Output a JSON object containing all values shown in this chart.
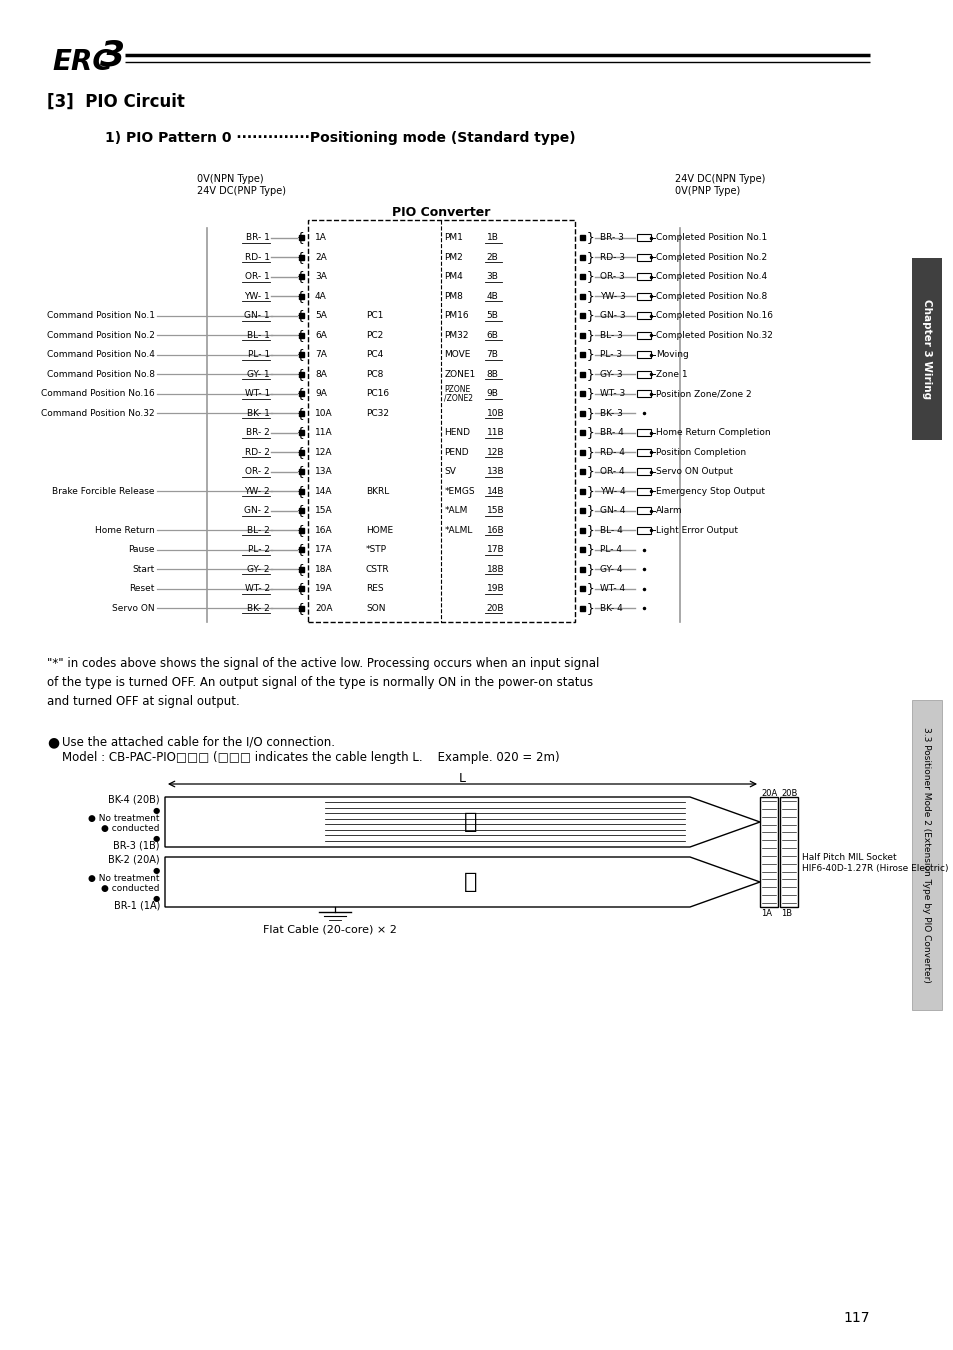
{
  "title": "[3]  PIO Circuit",
  "left_power_label1": "0V(NPN Type)",
  "left_power_label2": "24V DC(PNP Type)",
  "right_power_label1": "24V DC(NPN Type)",
  "right_power_label2": "0V(PNP Type)",
  "pio_converter_label": "PIO Converter",
  "left_wires": [
    [
      "BR- 1",
      "1A",
      ""
    ],
    [
      "RD- 1",
      "2A",
      ""
    ],
    [
      "OR- 1",
      "3A",
      ""
    ],
    [
      "YW- 1",
      "4A",
      ""
    ],
    [
      "GN- 1",
      "5A",
      "PC1"
    ],
    [
      "BL- 1",
      "6A",
      "PC2"
    ],
    [
      "PL- 1",
      "7A",
      "PC4"
    ],
    [
      "GY- 1",
      "8A",
      "PC8"
    ],
    [
      "WT- 1",
      "9A",
      "PC16"
    ],
    [
      "BK- 1",
      "10A",
      "PC32"
    ],
    [
      "BR- 2",
      "11A",
      ""
    ],
    [
      "RD- 2",
      "12A",
      ""
    ],
    [
      "OR- 2",
      "13A",
      ""
    ],
    [
      "YW- 2",
      "14A",
      "BKRL"
    ],
    [
      "GN- 2",
      "15A",
      ""
    ],
    [
      "BL- 2",
      "16A",
      "HOME"
    ],
    [
      "PL- 2",
      "17A",
      "*STP"
    ],
    [
      "GY- 2",
      "18A",
      "CSTR"
    ],
    [
      "WT- 2",
      "19A",
      "RES"
    ],
    [
      "BK- 2",
      "20A",
      "SON"
    ]
  ],
  "right_wires": [
    [
      "PM1",
      "1B",
      "BR- 3",
      "Completed Position No.1"
    ],
    [
      "PM2",
      "2B",
      "RD- 3",
      "Completed Position No.2"
    ],
    [
      "PM4",
      "3B",
      "OR- 3",
      "Completed Position No.4"
    ],
    [
      "PM8",
      "4B",
      "YW- 3",
      "Completed Position No.8"
    ],
    [
      "PM16",
      "5B",
      "GN- 3",
      "Completed Position No.16"
    ],
    [
      "PM32",
      "6B",
      "BL- 3",
      "Completed Position No.32"
    ],
    [
      "MOVE",
      "7B",
      "PL- 3",
      "Moving"
    ],
    [
      "ZONE1",
      "8B",
      "GY- 3",
      "Zone 1"
    ],
    [
      "PZONE\n/ZONE2",
      "9B",
      "WT- 3",
      "Position Zone/Zone 2"
    ],
    [
      "",
      "10B",
      "BK- 3",
      ""
    ],
    [
      "HEND",
      "11B",
      "BR- 4",
      "Home Return Completion"
    ],
    [
      "PEND",
      "12B",
      "RD- 4",
      "Position Completion"
    ],
    [
      "SV",
      "13B",
      "OR- 4",
      "Servo ON Output"
    ],
    [
      "*EMGS",
      "14B",
      "YW- 4",
      "Emergency Stop Output"
    ],
    [
      "*ALM",
      "15B",
      "GN- 4",
      "Alarm"
    ],
    [
      "*ALML",
      "16B",
      "BL- 4",
      "Light Error Output"
    ],
    [
      "",
      "17B",
      "PL- 4",
      ""
    ],
    [
      "",
      "18B",
      "GY- 4",
      ""
    ],
    [
      "",
      "19B",
      "WT- 4",
      ""
    ],
    [
      "",
      "20B",
      "BK- 4",
      ""
    ]
  ],
  "left_labels": [
    [
      5,
      "Command Position No.1"
    ],
    [
      6,
      "Command Position No.2"
    ],
    [
      7,
      "Command Position No.4"
    ],
    [
      8,
      "Command Position No.8"
    ],
    [
      9,
      "Command Position No.16"
    ],
    [
      10,
      "Command Position No.32"
    ],
    [
      14,
      "Brake Forcible Release"
    ],
    [
      16,
      "Home Return"
    ],
    [
      17,
      "Pause"
    ],
    [
      18,
      "Start"
    ],
    [
      19,
      "Reset"
    ],
    [
      20,
      "Servo ON"
    ]
  ],
  "note_text": "\"*\" in codes above shows the signal of the active low. Processing occurs when an input signal\nof the type is turned OFF. An output signal of the type is normally ON in the power-on status\nand turned OFF at signal output.",
  "bullet_line1": "Use the attached cable for the I/O connection.",
  "bullet_line2": "Model : CB-PAC-PIO□□□ (□□□ indicates the cable length L.    Example. 020 = 2m)",
  "flat_cable_label": "Flat Cable (20-core) × 2",
  "connector_label1": "Half Pitch MIL Socket",
  "connector_label2": "HIF6-40D-1.27R (Hirose Electric)",
  "right_tab_text": "Chapter 3 Wiring",
  "right_tab_text2": "3.3 Positioner Mode 2 (Extension Type by PIO Converter)",
  "page_number": "117",
  "bg_color": "#ffffff",
  "text_color": "#000000",
  "gray_color": "#999999",
  "dark_gray": "#404040",
  "light_gray": "#c8c8c8"
}
